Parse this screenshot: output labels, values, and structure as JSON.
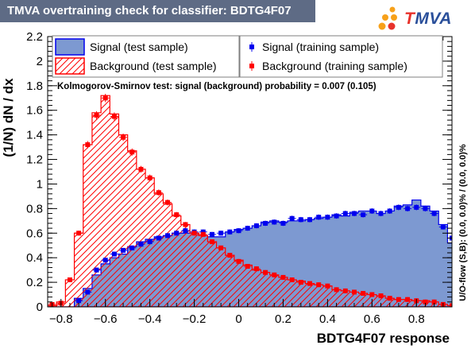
{
  "title": "TMVA overtraining check for classifier: BDTG4F07",
  "logo": {
    "t": "T",
    "rest": "MVA",
    "dot_colors": [
      "#f7a11a",
      "#f7a11a",
      "#f7a11a",
      "#f7a11a",
      "#e8322b"
    ]
  },
  "colors": {
    "signal_fill": "#7d99d1",
    "signal_line": "#0000ee",
    "background": "#ff0000",
    "title_bg": "#5e6b85"
  },
  "chart_data": {
    "type": "histogram",
    "title": "TMVA overtraining check for classifier: BDTG4F07",
    "xlabel": "BDTG4F07 response",
    "ylabel": "(1/N) dN / dx",
    "xlim": [
      -0.86,
      0.96
    ],
    "ylim": [
      0,
      2.2
    ],
    "x_ticks": [
      -0.8,
      -0.6,
      -0.4,
      -0.2,
      0,
      0.2,
      0.4,
      0.6,
      0.8
    ],
    "x_tick_labels": [
      "−0.8",
      "−0.6",
      "−0.4",
      "−0.2",
      "0",
      "0.2",
      "0.4",
      "0.6",
      "0.8"
    ],
    "y_ticks": [
      0,
      0.2,
      0.4,
      0.6,
      0.8,
      1,
      1.2,
      1.4,
      1.6,
      1.8,
      2,
      2.2
    ],
    "y_tick_labels": [
      "0",
      "0.2",
      "0.4",
      "0.6",
      "0.8",
      "1",
      "1.2",
      "1.4",
      "1.6",
      "1.8",
      "2",
      "2.2"
    ],
    "bin_lo": -0.86,
    "bin_width": 0.04,
    "series": [
      {
        "name": "Signal (test sample)",
        "style": "filled-histogram",
        "values": [
          0.0,
          0.0,
          0.0,
          0.07,
          0.15,
          0.26,
          0.35,
          0.4,
          0.43,
          0.49,
          0.53,
          0.55,
          0.57,
          0.58,
          0.6,
          0.6,
          0.6,
          0.58,
          0.57,
          0.57,
          0.61,
          0.63,
          0.64,
          0.66,
          0.69,
          0.7,
          0.69,
          0.7,
          0.7,
          0.71,
          0.72,
          0.73,
          0.75,
          0.74,
          0.77,
          0.78,
          0.78,
          0.76,
          0.78,
          0.82,
          0.83,
          0.87,
          0.82,
          0.78,
          0.67,
          0.52
        ]
      },
      {
        "name": "Background (test sample)",
        "style": "hatched-histogram",
        "values": [
          0.01,
          0.04,
          0.22,
          0.6,
          1.32,
          1.58,
          1.72,
          1.57,
          1.4,
          1.27,
          1.12,
          1.05,
          0.92,
          0.84,
          0.74,
          0.67,
          0.6,
          0.58,
          0.53,
          0.48,
          0.42,
          0.38,
          0.34,
          0.3,
          0.28,
          0.26,
          0.24,
          0.22,
          0.21,
          0.19,
          0.18,
          0.17,
          0.14,
          0.13,
          0.12,
          0.11,
          0.1,
          0.09,
          0.07,
          0.06,
          0.06,
          0.05,
          0.05,
          0.04,
          0.02,
          0.01
        ]
      },
      {
        "name": "Signal (training sample)",
        "style": "markers",
        "values": [
          0.0,
          0.0,
          0.0,
          0.05,
          0.12,
          0.3,
          0.38,
          0.43,
          0.46,
          0.48,
          0.51,
          0.53,
          0.56,
          0.58,
          0.6,
          0.62,
          0.61,
          0.61,
          0.59,
          0.6,
          0.61,
          0.62,
          0.64,
          0.66,
          0.68,
          0.69,
          0.68,
          0.72,
          0.71,
          0.71,
          0.73,
          0.73,
          0.74,
          0.76,
          0.76,
          0.75,
          0.78,
          0.76,
          0.78,
          0.81,
          0.8,
          0.81,
          0.8,
          0.76,
          0.65,
          0.56
        ]
      },
      {
        "name": "Background (training sample)",
        "style": "markers",
        "values": [
          0.02,
          0.03,
          0.22,
          0.6,
          1.32,
          1.56,
          1.7,
          1.55,
          1.38,
          1.26,
          1.12,
          1.05,
          0.93,
          0.85,
          0.75,
          0.67,
          0.6,
          0.59,
          0.53,
          0.48,
          0.42,
          0.37,
          0.33,
          0.31,
          0.28,
          0.26,
          0.24,
          0.22,
          0.2,
          0.19,
          0.18,
          0.17,
          0.14,
          0.13,
          0.12,
          0.11,
          0.1,
          0.09,
          0.07,
          0.06,
          0.06,
          0.05,
          0.04,
          0.04,
          0.02,
          0.01
        ]
      }
    ],
    "annotation": "Kolmogorov-Smirnov test: signal (background) probability = 0.007 (0.105)",
    "side_label": "U/O-flow (S,B): (0.0, 0.0)% / (0.0, 0.0)%",
    "legend": [
      "Signal (test sample)",
      "Signal (training sample)",
      "Background (test sample)",
      "Background (training sample)"
    ],
    "legend_position": "top"
  }
}
